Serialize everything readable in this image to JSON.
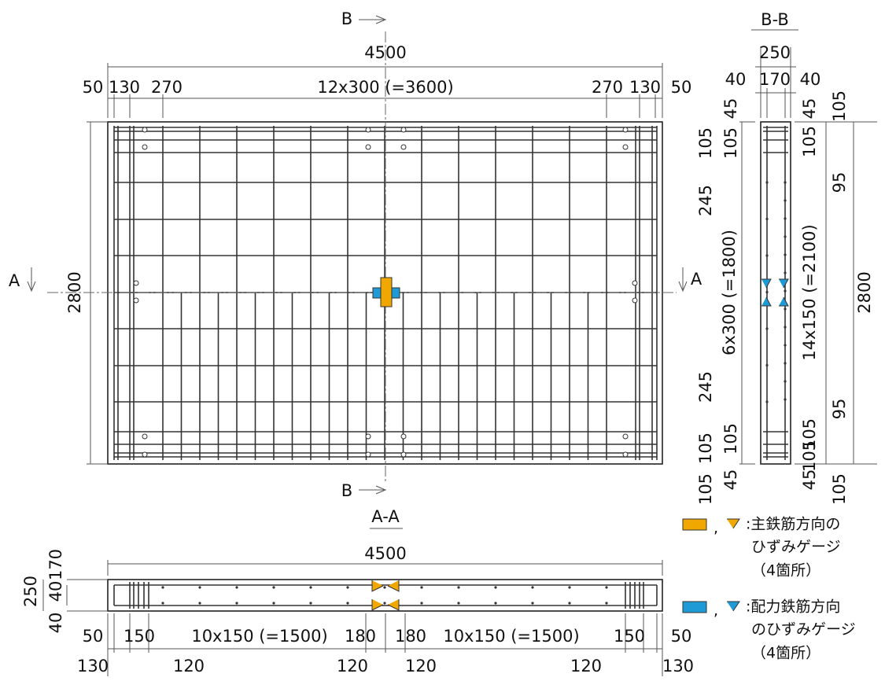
{
  "plan": {
    "section_top": "B",
    "section_bottom": "B",
    "section_left": "A",
    "section_right": "A",
    "width": "4500",
    "height": "2800",
    "top_dims": [
      "50",
      "130",
      "270",
      "12x300 (=3600)",
      "270",
      "130",
      "50"
    ]
  },
  "section_bb": {
    "title": "B-B",
    "width": "250",
    "width_parts": [
      "40",
      "170",
      "40"
    ],
    "left_dims": [
      "45",
      "105",
      "105",
      "245",
      "6x300 (=1800)",
      "245",
      "105",
      "105",
      "45",
      "105"
    ],
    "right_dims": [
      "45",
      "105",
      "105",
      "95",
      "14x150 (=2100)",
      "95",
      "105",
      "105",
      "45",
      "105"
    ],
    "height": "2800"
  },
  "section_aa": {
    "title": "A-A",
    "width": "4500",
    "side_dims": [
      "250",
      "40",
      "170",
      "40"
    ],
    "bottom_dims": [
      "50",
      "150",
      "10x150 (=1500)",
      "180",
      "180",
      "10x150 (=1500)",
      "150",
      "50"
    ],
    "bottom_dims_2": [
      "130",
      "120",
      "120",
      "120",
      "120",
      "130"
    ]
  },
  "legend": {
    "separator": ",",
    "items": [
      {
        "lines": [
          ":主鉄筋方向の",
          "ひずみゲージ",
          "（4箇所）"
        ]
      },
      {
        "lines": [
          ":配力鉄筋方向",
          "のひずみゲージ",
          "（4箇所）"
        ]
      }
    ]
  }
}
